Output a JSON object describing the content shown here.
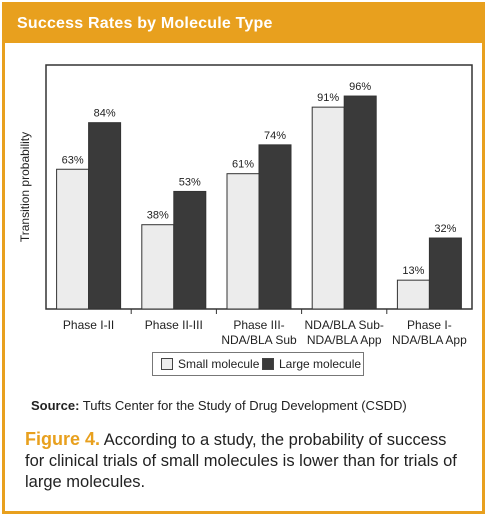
{
  "header": {
    "title": "Success Rates by Molecule Type"
  },
  "chart_data": {
    "type": "bar",
    "ylabel": "Transition probability",
    "xlabel": "",
    "ylim": [
      0,
      110
    ],
    "grid": false,
    "legend_position": "bottom-center",
    "categories": [
      [
        "Phase I-II"
      ],
      [
        "Phase II-III"
      ],
      [
        "Phase III-",
        "NDA/BLA Sub"
      ],
      [
        "NDA/BLA Sub-",
        "NDA/BLA App"
      ],
      [
        "Phase I-",
        "NDA/BLA App"
      ]
    ],
    "series": [
      {
        "name": "Small molecule",
        "values": [
          63,
          38,
          61,
          91,
          13
        ],
        "labels": [
          "63%",
          "38%",
          "61%",
          "91%",
          "13%"
        ],
        "color": "#ececec"
      },
      {
        "name": "Large molecule",
        "values": [
          84,
          53,
          74,
          96,
          32
        ],
        "labels": [
          "84%",
          "53%",
          "74%",
          "96%",
          "32%"
        ],
        "color": "#3a3a3a"
      }
    ]
  },
  "legend": {
    "small": "Small molecule",
    "large": "Large molecule"
  },
  "source": {
    "label": "Source:",
    "text": "Tufts Center for the Study of Drug Development (CSDD)"
  },
  "caption": {
    "figure": "Figure 4.",
    "text": "According to a study, the probability of success for clinical trials of small molecules is lower than for trials of large molecules."
  },
  "colors": {
    "accent": "#e8a01e",
    "small": "#ececec",
    "large": "#3a3a3a"
  }
}
